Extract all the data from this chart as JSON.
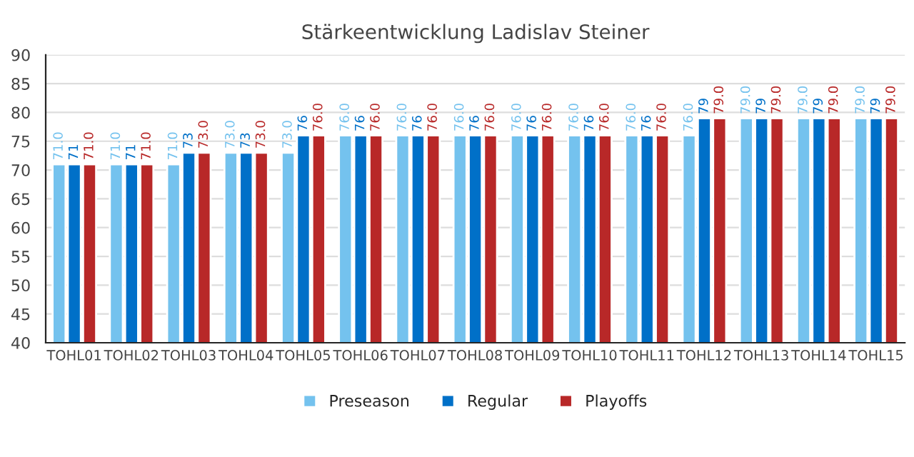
{
  "chart_data": {
    "type": "bar",
    "title": "Stärkeentwicklung Ladislav Steiner",
    "categories": [
      "TOHL01",
      "TOHL02",
      "TOHL03",
      "TOHL04",
      "TOHL05",
      "TOHL06",
      "TOHL07",
      "TOHL08",
      "TOHL09",
      "TOHL10",
      "TOHL11",
      "TOHL12",
      "TOHL13",
      "TOHL14",
      "TOHL15"
    ],
    "series": [
      {
        "name": "Preseason",
        "color": "#74c2ee",
        "values": [
          71,
          71,
          71,
          73,
          73,
          76,
          76,
          76,
          76,
          76,
          76,
          76,
          79,
          79,
          79
        ],
        "value_labels": [
          "71.0",
          "71.0",
          "71.0",
          "73.0",
          "73.0",
          "76.0",
          "76.0",
          "76.0",
          "76.0",
          "76.0",
          "76.0",
          "76.0",
          "79.0",
          "79.0",
          "79.0"
        ]
      },
      {
        "name": "Regular",
        "color": "#0070c8",
        "values": [
          71,
          71,
          73,
          73,
          76,
          76,
          76,
          76,
          76,
          76,
          76,
          79,
          79,
          79,
          79
        ],
        "value_labels": [
          "71",
          "71",
          "73",
          "73",
          "76",
          "76",
          "76",
          "76",
          "76",
          "76",
          "76",
          "79",
          "79",
          "79",
          "79"
        ]
      },
      {
        "name": "Playoffs",
        "color": "#b82828",
        "values": [
          71,
          71,
          73,
          73,
          76,
          76,
          76,
          76,
          76,
          76,
          76,
          79,
          79,
          79,
          79
        ],
        "value_labels": [
          "71.0",
          "71.0",
          "73.0",
          "73.0",
          "76.0",
          "76.0",
          "76.0",
          "76.0",
          "76.0",
          "76.0",
          "76.0",
          "79.0",
          "79.0",
          "79.0",
          "79.0"
        ]
      }
    ],
    "ylim": [
      40,
      90
    ],
    "yticks": [
      40,
      45,
      50,
      55,
      60,
      65,
      70,
      75,
      80,
      85,
      90
    ],
    "grid": "y",
    "legend": "bottom"
  }
}
